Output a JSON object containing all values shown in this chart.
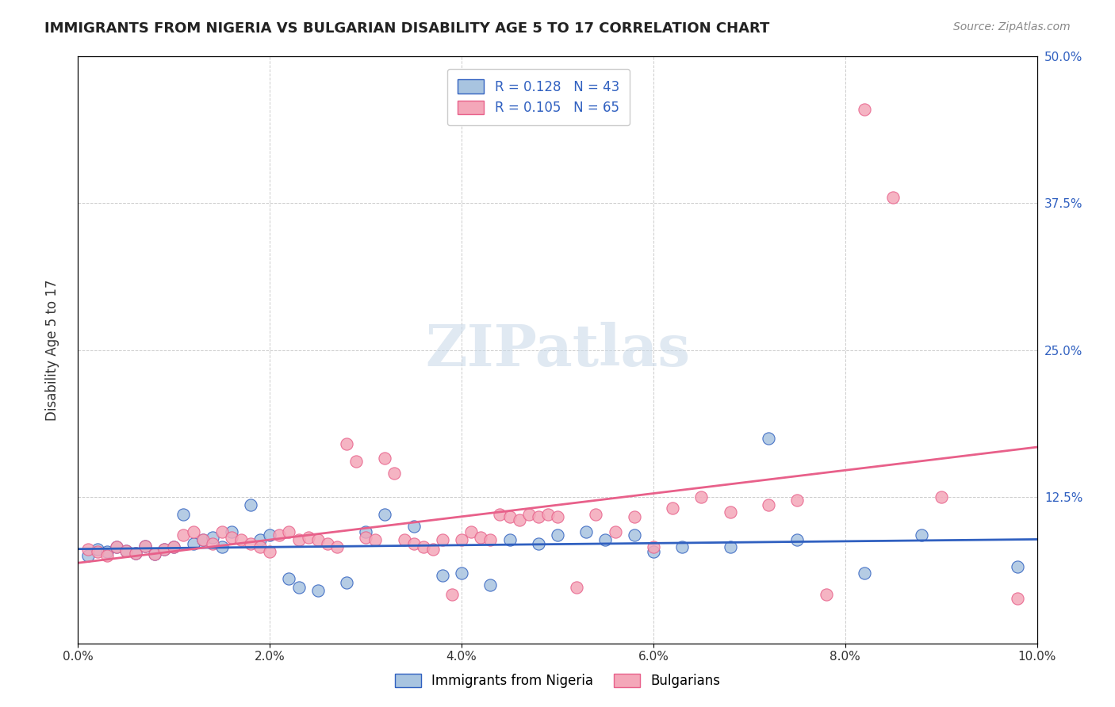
{
  "title": "IMMIGRANTS FROM NIGERIA VS BULGARIAN DISABILITY AGE 5 TO 17 CORRELATION CHART",
  "source": "Source: ZipAtlas.com",
  "xlabel": "",
  "ylabel": "Disability Age 5 to 17",
  "legend_label_1": "Immigrants from Nigeria",
  "legend_label_2": "Bulgarians",
  "r1": 0.128,
  "n1": 43,
  "r2": 0.105,
  "n2": 65,
  "color1": "#a8c4e0",
  "color2": "#f4a7b9",
  "line_color1": "#3060c0",
  "line_color2": "#e8608a",
  "xlim": [
    0.0,
    0.1
  ],
  "ylim": [
    0.0,
    0.5
  ],
  "xticks": [
    0.0,
    0.02,
    0.04,
    0.06,
    0.08,
    0.1
  ],
  "yticks": [
    0.0,
    0.125,
    0.25,
    0.375,
    0.5
  ],
  "xticklabels": [
    "0.0%",
    "2.0%",
    "4.0%",
    "6.0%",
    "8.0%",
    "10.0%"
  ],
  "yticklabels": [
    "",
    "12.5%",
    "25.0%",
    "37.5%",
    "50.0%"
  ],
  "watermark": "ZIPatlas",
  "nigeria_x": [
    0.001,
    0.002,
    0.003,
    0.004,
    0.005,
    0.006,
    0.007,
    0.008,
    0.009,
    0.01,
    0.011,
    0.012,
    0.013,
    0.014,
    0.015,
    0.016,
    0.018,
    0.019,
    0.02,
    0.022,
    0.023,
    0.025,
    0.028,
    0.03,
    0.032,
    0.035,
    0.038,
    0.04,
    0.043,
    0.045,
    0.048,
    0.05,
    0.053,
    0.055,
    0.058,
    0.06,
    0.063,
    0.068,
    0.072,
    0.075,
    0.082,
    0.088,
    0.098
  ],
  "nigeria_y": [
    0.075,
    0.08,
    0.078,
    0.082,
    0.079,
    0.077,
    0.083,
    0.076,
    0.08,
    0.082,
    0.11,
    0.085,
    0.088,
    0.09,
    0.082,
    0.095,
    0.118,
    0.088,
    0.092,
    0.055,
    0.048,
    0.045,
    0.052,
    0.095,
    0.11,
    0.1,
    0.058,
    0.06,
    0.05,
    0.088,
    0.085,
    0.092,
    0.095,
    0.088,
    0.092,
    0.078,
    0.082,
    0.082,
    0.175,
    0.088,
    0.06,
    0.092,
    0.065
  ],
  "bulgarian_x": [
    0.001,
    0.002,
    0.003,
    0.004,
    0.005,
    0.006,
    0.007,
    0.008,
    0.009,
    0.01,
    0.011,
    0.012,
    0.013,
    0.014,
    0.015,
    0.016,
    0.017,
    0.018,
    0.019,
    0.02,
    0.021,
    0.022,
    0.023,
    0.024,
    0.025,
    0.026,
    0.027,
    0.028,
    0.029,
    0.03,
    0.031,
    0.032,
    0.033,
    0.034,
    0.035,
    0.036,
    0.037,
    0.038,
    0.039,
    0.04,
    0.041,
    0.042,
    0.043,
    0.044,
    0.045,
    0.046,
    0.047,
    0.048,
    0.049,
    0.05,
    0.052,
    0.054,
    0.056,
    0.058,
    0.06,
    0.062,
    0.065,
    0.068,
    0.072,
    0.075,
    0.078,
    0.082,
    0.085,
    0.09,
    0.098
  ],
  "bulgarian_y": [
    0.08,
    0.078,
    0.075,
    0.082,
    0.079,
    0.077,
    0.083,
    0.076,
    0.08,
    0.082,
    0.092,
    0.095,
    0.088,
    0.085,
    0.095,
    0.09,
    0.088,
    0.085,
    0.082,
    0.078,
    0.092,
    0.095,
    0.088,
    0.09,
    0.088,
    0.085,
    0.082,
    0.17,
    0.155,
    0.09,
    0.088,
    0.158,
    0.145,
    0.088,
    0.085,
    0.082,
    0.08,
    0.088,
    0.042,
    0.088,
    0.095,
    0.09,
    0.088,
    0.11,
    0.108,
    0.105,
    0.11,
    0.108,
    0.11,
    0.108,
    0.048,
    0.11,
    0.095,
    0.108,
    0.082,
    0.115,
    0.125,
    0.112,
    0.118,
    0.122,
    0.042,
    0.455,
    0.38,
    0.125,
    0.038
  ]
}
